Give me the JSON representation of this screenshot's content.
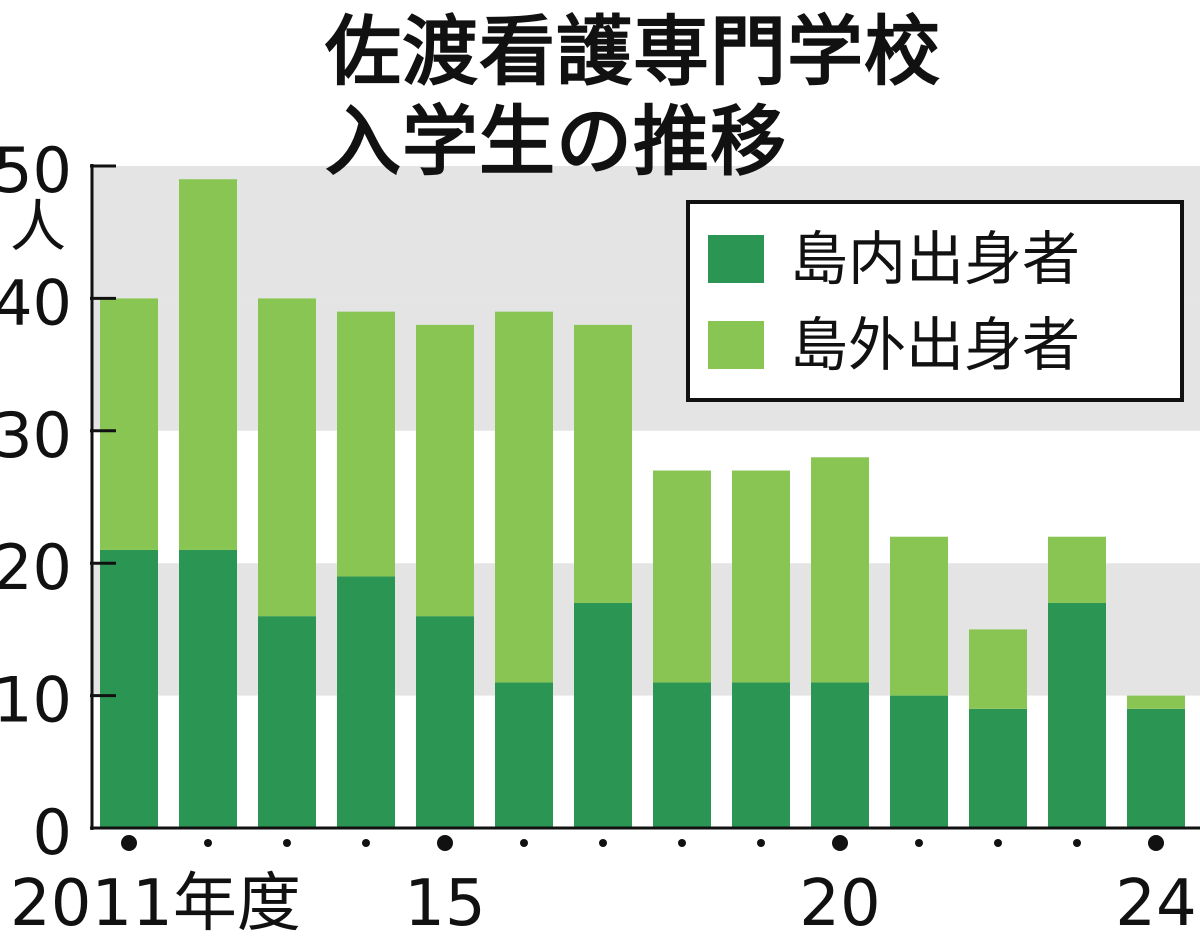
{
  "title_line1": "佐渡看護専門学校",
  "title_line2": "入学生の推移",
  "unit": "人",
  "colors": {
    "inside": "#2b9654",
    "outside": "#88c553",
    "band": "#e4e4e4",
    "axis": "#111111"
  },
  "chart_data": {
    "type": "bar",
    "stacked": true,
    "title": "佐渡看護専門学校 入学生の推移",
    "x": [
      "2011",
      "2012",
      "2013",
      "2014",
      "2015",
      "2016",
      "2017",
      "2018",
      "2019",
      "2020",
      "2021",
      "2022",
      "2023",
      "2024"
    ],
    "x_tick_labels": [
      {
        "index": 0,
        "text": "2011年度"
      },
      {
        "index": 4,
        "text": "15"
      },
      {
        "index": 9,
        "text": "20"
      },
      {
        "index": 13,
        "text": "24"
      }
    ],
    "big_dot_indices": [
      0,
      4,
      9,
      13
    ],
    "series": [
      {
        "name": "島内出身者",
        "values": [
          21,
          21,
          16,
          19,
          16,
          11,
          17,
          11,
          11,
          11,
          10,
          9,
          17,
          9
        ]
      },
      {
        "name": "島外出身者",
        "values": [
          19,
          28,
          24,
          20,
          22,
          28,
          21,
          16,
          16,
          17,
          12,
          6,
          5,
          1
        ]
      }
    ],
    "ylim": [
      0,
      50
    ],
    "yticks": [
      "0",
      "10",
      "20",
      "30",
      "40",
      "50"
    ],
    "ylabel": "人",
    "legend": "top-right",
    "grid": "alternating-bands"
  }
}
